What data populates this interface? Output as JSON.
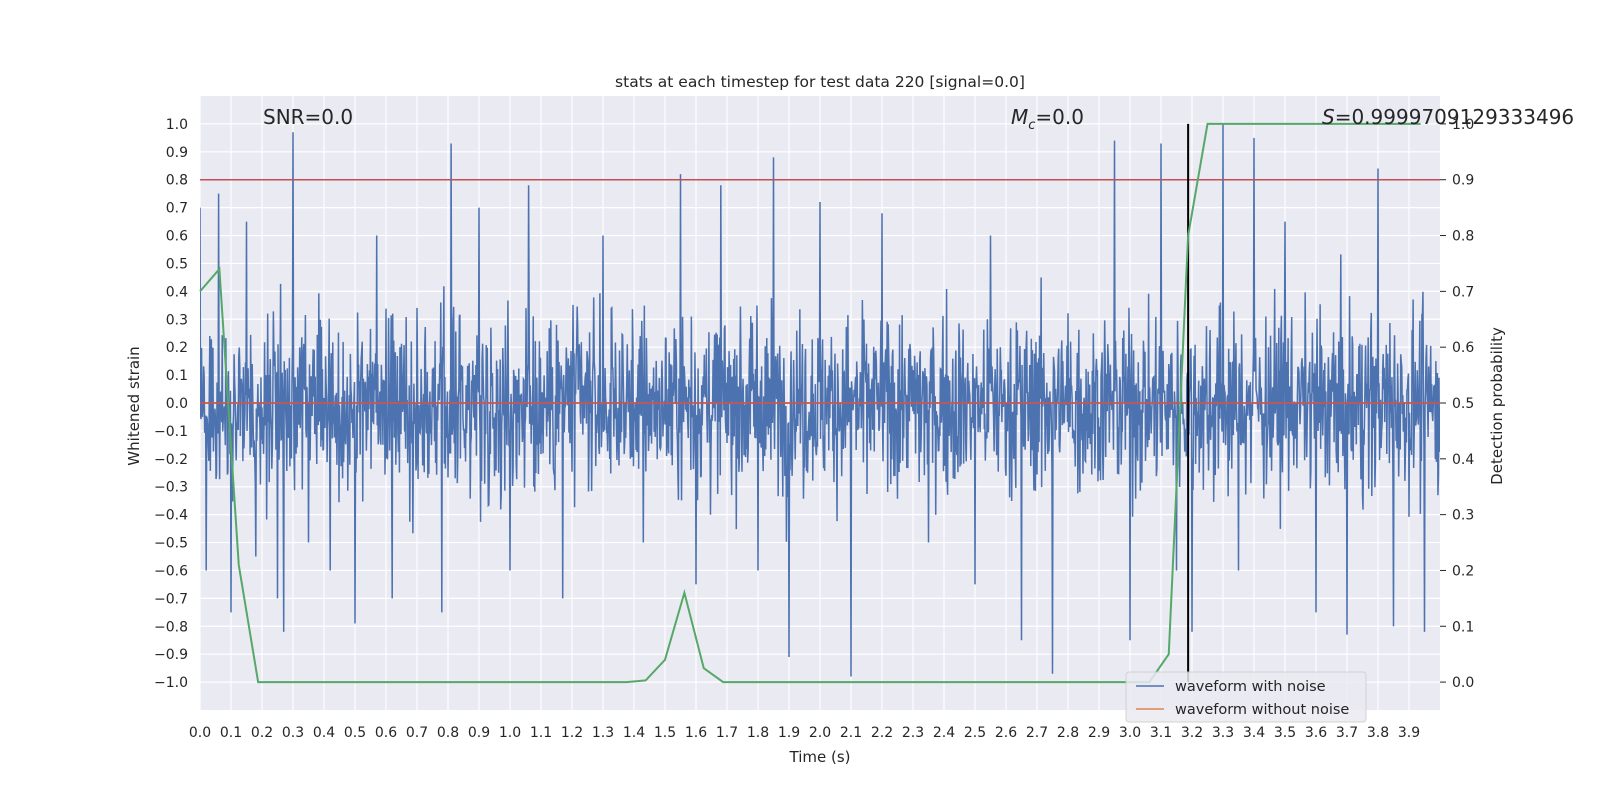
{
  "chart_data": {
    "type": "line",
    "title": "stats at each timestep for test data 220 [signal=0.0]",
    "xlabel": "Time (s)",
    "ylabel": "Whitened strain",
    "y2label": "Detection probability",
    "xlim": [
      0.0,
      4.0
    ],
    "ylim": [
      -1.1,
      1.1
    ],
    "y2lim": [
      -0.05,
      1.05
    ],
    "xticks": [
      "0.0",
      "0.1",
      "0.2",
      "0.3",
      "0.4",
      "0.5",
      "0.6",
      "0.7",
      "0.8",
      "0.9",
      "1.0",
      "1.1",
      "1.2",
      "1.3",
      "1.4",
      "1.5",
      "1.6",
      "1.7",
      "1.8",
      "1.9",
      "2.0",
      "2.1",
      "2.2",
      "2.3",
      "2.4",
      "2.5",
      "2.6",
      "2.7",
      "2.8",
      "2.9",
      "3.0",
      "3.1",
      "3.2",
      "3.3",
      "3.4",
      "3.5",
      "3.6",
      "3.7",
      "3.8",
      "3.9"
    ],
    "yticks": [
      "-1.0",
      "-0.9",
      "-0.8",
      "-0.7",
      "-0.6",
      "-0.5",
      "-0.4",
      "-0.3",
      "-0.2",
      "-0.1",
      "0.0",
      "0.1",
      "0.2",
      "0.3",
      "0.4",
      "0.5",
      "0.6",
      "0.7",
      "0.8",
      "0.9",
      "1.0"
    ],
    "y2ticks": [
      "0.0",
      "0.1",
      "0.2",
      "0.3",
      "0.4",
      "0.5",
      "0.6",
      "0.7",
      "0.8",
      "0.9",
      "1.0"
    ],
    "grid": true,
    "legend_position": "lower-right",
    "annotations": {
      "snr": "SNR=0.0",
      "mc_symbol": "M",
      "mc_sub": "c",
      "mc_value": "=0.0",
      "s_symbol": "S",
      "s_value": "=0.9999709129333496"
    },
    "series": [
      {
        "name": "waveform with noise",
        "color": "#4c72b0",
        "x_range": [
          0.0,
          4.0
        ],
        "description": "dense whitened noise",
        "spikes": [
          [
            0.0,
            0.7
          ],
          [
            0.02,
            -0.6
          ],
          [
            0.06,
            0.75
          ],
          [
            0.1,
            -0.75
          ],
          [
            0.15,
            0.65
          ],
          [
            0.18,
            -0.55
          ],
          [
            0.25,
            -0.7
          ],
          [
            0.27,
            -0.82
          ],
          [
            0.3,
            0.97
          ],
          [
            0.35,
            -0.5
          ],
          [
            0.42,
            -0.6
          ],
          [
            0.5,
            -0.79
          ],
          [
            0.57,
            0.6
          ],
          [
            0.62,
            -0.7
          ],
          [
            0.78,
            -0.75
          ],
          [
            0.81,
            0.93
          ],
          [
            0.9,
            0.7
          ],
          [
            1.0,
            -0.6
          ],
          [
            1.06,
            0.78
          ],
          [
            1.17,
            -0.7
          ],
          [
            1.3,
            0.6
          ],
          [
            1.43,
            -0.5
          ],
          [
            1.55,
            0.82
          ],
          [
            1.6,
            -0.65
          ],
          [
            1.68,
            0.78
          ],
          [
            1.8,
            -0.6
          ],
          [
            1.85,
            0.88
          ],
          [
            1.9,
            -0.91
          ],
          [
            2.0,
            0.72
          ],
          [
            2.1,
            -0.98
          ],
          [
            2.2,
            0.68
          ],
          [
            2.35,
            -0.5
          ],
          [
            2.5,
            -0.65
          ],
          [
            2.55,
            0.6
          ],
          [
            2.65,
            -0.85
          ],
          [
            2.75,
            -0.97
          ],
          [
            2.95,
            0.94
          ],
          [
            3.0,
            -0.85
          ],
          [
            3.1,
            0.93
          ],
          [
            3.15,
            -0.6
          ],
          [
            3.2,
            -0.82
          ],
          [
            3.3,
            1.0
          ],
          [
            3.35,
            -0.6
          ],
          [
            3.4,
            0.95
          ],
          [
            3.5,
            0.65
          ],
          [
            3.6,
            -0.75
          ],
          [
            3.7,
            -0.83
          ],
          [
            3.8,
            0.84
          ],
          [
            3.85,
            -0.8
          ],
          [
            3.95,
            -0.82
          ]
        ]
      },
      {
        "name": "waveform without noise",
        "color": "#dd8452",
        "x": [
          0.0,
          4.0
        ],
        "y": [
          0.0,
          0.0
        ]
      },
      {
        "name": "detection probability",
        "color": "#55a868",
        "axis": "right",
        "x": [
          0.0,
          0.0625,
          0.125,
          0.1875,
          0.25,
          1.375,
          1.4375,
          1.5,
          1.5625,
          1.625,
          1.6875,
          3.0,
          3.0625,
          3.125,
          3.1875,
          3.25,
          3.9375
        ],
        "y": [
          0.7,
          0.74,
          0.21,
          0.0,
          0.0,
          0.0,
          0.003,
          0.04,
          0.16,
          0.025,
          0.0,
          0.0,
          0.0,
          0.05,
          0.8,
          1.0,
          1.0
        ]
      }
    ],
    "hlines": [
      {
        "y": 0.8,
        "color": "#c44e52",
        "axis": "left"
      },
      {
        "y": 0.5,
        "color": "#c44e52",
        "axis": "right"
      }
    ],
    "vlines": [
      {
        "x": 3.1875,
        "color": "#000000"
      }
    ],
    "colors": {
      "background": "#eaeaf2",
      "grid": "#ffffff",
      "noise": "#4c72b0",
      "clean": "#dd8452",
      "probability": "#55a868",
      "threshold": "#c44e52",
      "marker": "#000000"
    }
  }
}
